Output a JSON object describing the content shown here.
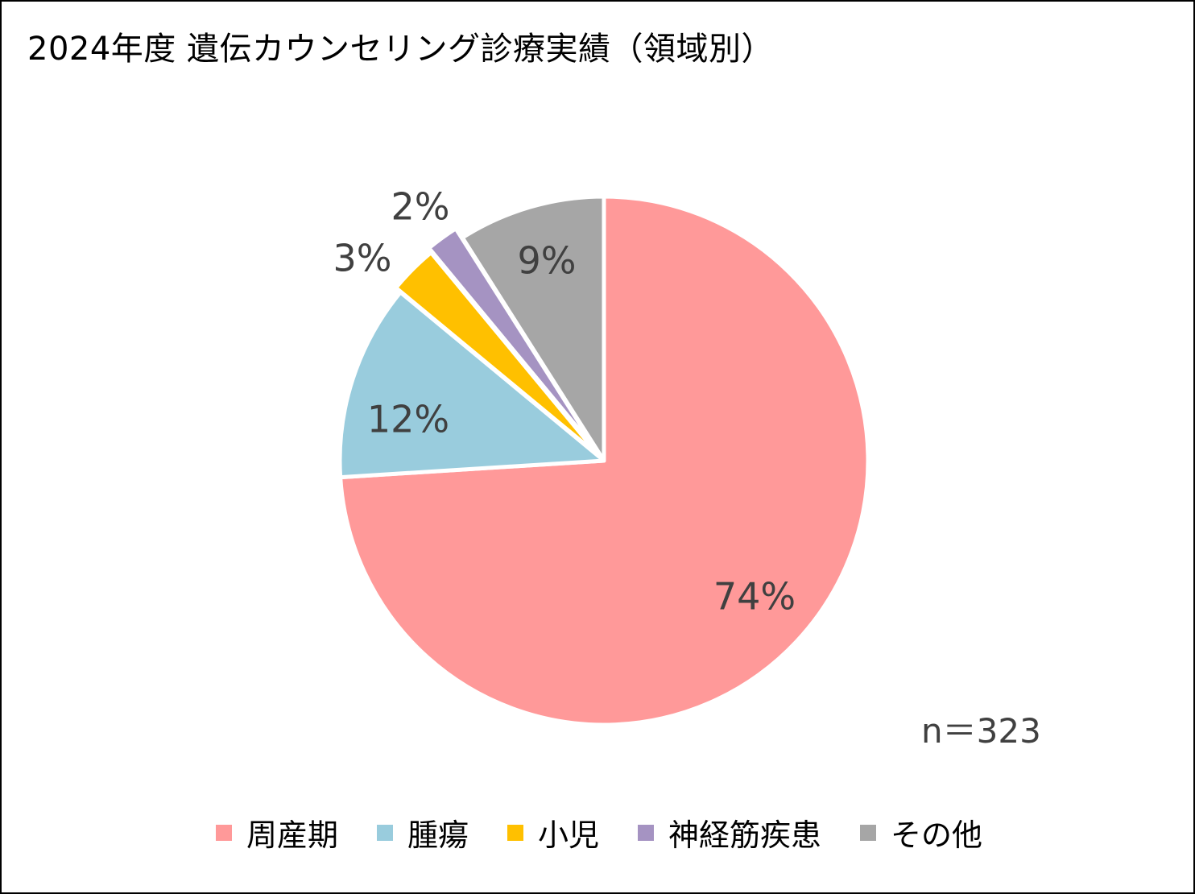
{
  "chart_data": {
    "type": "pie",
    "title": "2024年度 遺伝カウンセリング診療実績（領域別）",
    "categories": [
      "周産期",
      "腫瘍",
      "小児",
      "神経筋疾患",
      "その他"
    ],
    "values": [
      74,
      12,
      3,
      2,
      9
    ],
    "value_labels": [
      "74%",
      "12%",
      "3%",
      "2%",
      "9%"
    ],
    "colors": [
      "#FF9999",
      "#99CCDD",
      "#FFC000",
      "#A593C2",
      "#A6A6A6"
    ],
    "start": "12 o'clock",
    "direction": "clockwise",
    "legend_position": "bottom",
    "annotation": "n＝323"
  }
}
